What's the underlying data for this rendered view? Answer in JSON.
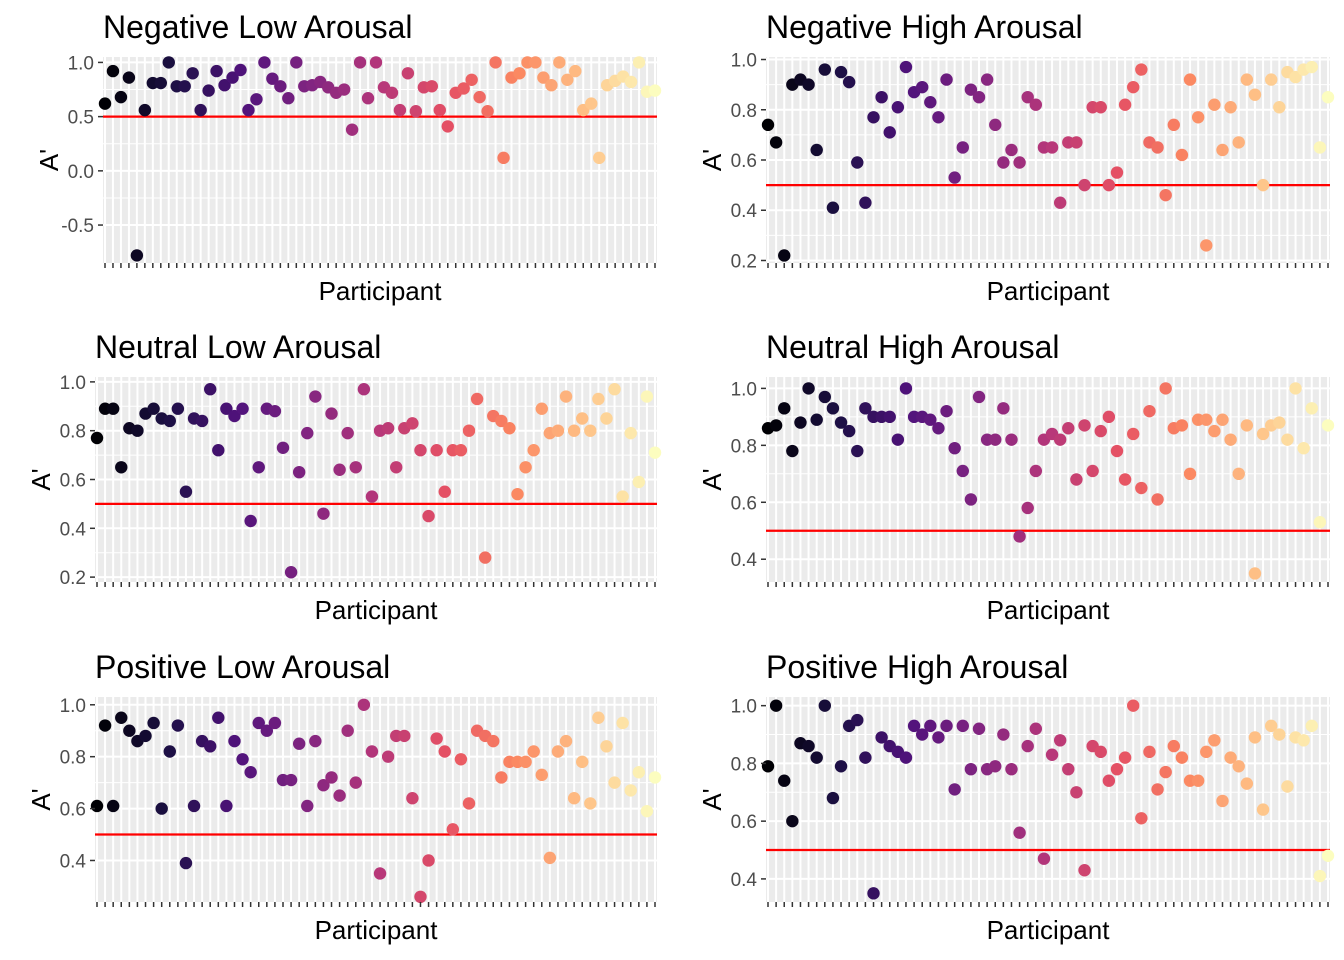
{
  "chart_data": [
    {
      "type": "scatter",
      "title": "Negative Low Arousal",
      "xlabel": "Participant",
      "ylabel": "A'",
      "ylim": [
        -0.85,
        1.05
      ],
      "yticks": [
        -0.5,
        0.0,
        0.5,
        1.0
      ],
      "ytick_labels": [
        "-0.5",
        "0.0",
        "0.5",
        "1.0"
      ],
      "reference_line": 0.5,
      "x": [
        1,
        2,
        3,
        4,
        5,
        6,
        7,
        8,
        9,
        10,
        11,
        12,
        13,
        14,
        15,
        16,
        17,
        18,
        19,
        20,
        21,
        22,
        23,
        24,
        25,
        26,
        27,
        28,
        29,
        30,
        31,
        32,
        33,
        34,
        35,
        36,
        37,
        38,
        39,
        40,
        41,
        42,
        43,
        44,
        45,
        46,
        47,
        48,
        49,
        50,
        51,
        52,
        53,
        54,
        55,
        56,
        57,
        58,
        59,
        60,
        61,
        62,
        63,
        64,
        65,
        66,
        67,
        68,
        69,
        70
      ],
      "values": [
        0.62,
        0.92,
        0.68,
        0.86,
        -0.78,
        0.56,
        0.81,
        0.81,
        1.0,
        0.78,
        0.78,
        0.9,
        0.56,
        0.74,
        0.92,
        0.79,
        0.86,
        0.93,
        0.56,
        0.66,
        1.0,
        0.85,
        0.78,
        0.67,
        1.0,
        0.78,
        0.79,
        0.82,
        0.77,
        0.72,
        0.75,
        0.38,
        1.0,
        0.67,
        1.0,
        0.77,
        0.72,
        0.56,
        0.9,
        0.55,
        0.77,
        0.78,
        0.56,
        0.41,
        0.72,
        0.76,
        0.84,
        0.68,
        0.55,
        1.0,
        0.12,
        0.86,
        0.9,
        1.0,
        1.0,
        0.86,
        0.79,
        1.0,
        0.84,
        0.92,
        0.56,
        0.62,
        0.12,
        0.79,
        0.83,
        0.87,
        0.82,
        1.0,
        0.73,
        0.74
      ]
    },
    {
      "type": "scatter",
      "title": "Negative High Arousal",
      "xlabel": "Participant",
      "ylabel": "A'",
      "ylim": [
        0.19,
        1.01
      ],
      "yticks": [
        0.2,
        0.4,
        0.6,
        0.8,
        1.0
      ],
      "ytick_labels": [
        "0.2",
        "0.4",
        "0.6",
        "0.8",
        "1.0"
      ],
      "reference_line": 0.5,
      "x": [
        1,
        2,
        3,
        4,
        5,
        6,
        7,
        8,
        9,
        10,
        11,
        12,
        13,
        14,
        15,
        16,
        17,
        18,
        19,
        20,
        21,
        22,
        23,
        24,
        25,
        26,
        27,
        28,
        29,
        30,
        31,
        32,
        33,
        34,
        35,
        36,
        37,
        38,
        39,
        40,
        41,
        42,
        43,
        44,
        45,
        46,
        47,
        48,
        49,
        50,
        51,
        52,
        53,
        54,
        55,
        56,
        57,
        58,
        59,
        60,
        61,
        62,
        63,
        64,
        65,
        66,
        67,
        68,
        69,
        70
      ],
      "values": [
        0.74,
        0.67,
        0.22,
        0.9,
        0.92,
        0.9,
        0.64,
        0.96,
        0.41,
        0.95,
        0.91,
        0.59,
        0.43,
        0.77,
        0.85,
        0.71,
        0.81,
        0.97,
        0.87,
        0.89,
        0.83,
        0.77,
        0.92,
        0.53,
        0.65,
        0.88,
        0.85,
        0.92,
        0.74,
        0.59,
        0.64,
        0.59,
        0.85,
        0.82,
        0.65,
        0.65,
        0.43,
        0.67,
        0.67,
        0.5,
        0.81,
        0.81,
        0.5,
        0.55,
        0.82,
        0.89,
        0.96,
        0.67,
        0.65,
        0.46,
        0.74,
        0.62,
        0.92,
        0.77,
        0.26,
        0.82,
        0.64,
        0.81,
        0.67,
        0.92,
        0.86,
        0.5,
        0.92,
        0.81,
        0.95,
        0.93,
        0.96,
        0.97,
        0.65,
        0.85
      ]
    },
    {
      "type": "scatter",
      "title": "Neutral Low Arousal",
      "xlabel": "Participant",
      "ylabel": "A'",
      "ylim": [
        0.18,
        1.02
      ],
      "yticks": [
        0.2,
        0.4,
        0.6,
        0.8,
        1.0
      ],
      "ytick_labels": [
        "0.2",
        "0.4",
        "0.6",
        "0.8",
        "1.0"
      ],
      "reference_line": 0.5,
      "x": [
        1,
        2,
        3,
        4,
        5,
        6,
        7,
        8,
        9,
        10,
        11,
        12,
        13,
        14,
        15,
        16,
        17,
        18,
        19,
        20,
        21,
        22,
        23,
        24,
        25,
        26,
        27,
        28,
        29,
        30,
        31,
        32,
        33,
        34,
        35,
        36,
        37,
        38,
        39,
        40,
        41,
        42,
        43,
        44,
        45,
        46,
        47,
        48,
        49,
        50,
        51,
        52,
        53,
        54,
        55,
        56,
        57,
        58,
        59,
        60,
        61,
        62,
        63,
        64,
        65,
        66,
        67,
        68,
        69,
        70
      ],
      "values": [
        0.77,
        0.89,
        0.89,
        0.65,
        0.81,
        0.8,
        0.87,
        0.89,
        0.85,
        0.84,
        0.89,
        0.55,
        0.85,
        0.84,
        0.97,
        0.72,
        0.89,
        0.86,
        0.89,
        0.43,
        0.65,
        0.89,
        0.88,
        0.73,
        0.22,
        0.63,
        0.79,
        0.94,
        0.46,
        0.87,
        0.64,
        0.79,
        0.65,
        0.97,
        0.53,
        0.8,
        0.81,
        0.65,
        0.81,
        0.83,
        0.72,
        0.45,
        0.72,
        0.55,
        0.72,
        0.72,
        0.8,
        0.93,
        0.28,
        0.86,
        0.84,
        0.81,
        0.54,
        0.65,
        0.72,
        0.89,
        0.79,
        0.8,
        0.94,
        0.8,
        0.85,
        0.8,
        0.93,
        0.85,
        0.97,
        0.53,
        0.79,
        0.59,
        0.94,
        0.71
      ]
    },
    {
      "type": "scatter",
      "title": "Neutral High Arousal",
      "xlabel": "Participant",
      "ylabel": "A'",
      "ylim": [
        0.32,
        1.04
      ],
      "yticks": [
        0.4,
        0.6,
        0.8,
        1.0
      ],
      "ytick_labels": [
        "0.4",
        "0.6",
        "0.8",
        "1.0"
      ],
      "reference_line": 0.5,
      "x": [
        1,
        2,
        3,
        4,
        5,
        6,
        7,
        8,
        9,
        10,
        11,
        12,
        13,
        14,
        15,
        16,
        17,
        18,
        19,
        20,
        21,
        22,
        23,
        24,
        25,
        26,
        27,
        28,
        29,
        30,
        31,
        32,
        33,
        34,
        35,
        36,
        37,
        38,
        39,
        40,
        41,
        42,
        43,
        44,
        45,
        46,
        47,
        48,
        49,
        50,
        51,
        52,
        53,
        54,
        55,
        56,
        57,
        58,
        59,
        60,
        61,
        62,
        63,
        64,
        65,
        66,
        67,
        68,
        69,
        70
      ],
      "values": [
        0.86,
        0.87,
        0.93,
        0.78,
        0.88,
        1.0,
        0.89,
        0.97,
        0.93,
        0.88,
        0.85,
        0.78,
        0.93,
        0.9,
        0.9,
        0.9,
        0.82,
        1.0,
        0.9,
        0.9,
        0.89,
        0.86,
        0.92,
        0.79,
        0.71,
        0.61,
        0.97,
        0.82,
        0.82,
        0.93,
        0.82,
        0.48,
        0.58,
        0.71,
        0.82,
        0.84,
        0.82,
        0.86,
        0.68,
        0.87,
        0.71,
        0.85,
        0.9,
        0.78,
        0.68,
        0.84,
        0.65,
        0.92,
        0.61,
        1.0,
        0.86,
        0.87,
        0.7,
        0.89,
        0.89,
        0.85,
        0.89,
        0.82,
        0.7,
        0.87,
        0.35,
        0.84,
        0.87,
        0.88,
        0.82,
        1.0,
        0.79,
        0.93,
        0.53,
        0.87
      ]
    },
    {
      "type": "scatter",
      "title": "Positive Low Arousal",
      "xlabel": "Participant",
      "ylabel": "A'",
      "ylim": [
        0.24,
        1.03
      ],
      "yticks": [
        0.4,
        0.6,
        0.8,
        1.0
      ],
      "ytick_labels": [
        "0.4",
        "0.6",
        "0.8",
        "1.0"
      ],
      "reference_line": 0.5,
      "x": [
        1,
        2,
        3,
        4,
        5,
        6,
        7,
        8,
        9,
        10,
        11,
        12,
        13,
        14,
        15,
        16,
        17,
        18,
        19,
        20,
        21,
        22,
        23,
        24,
        25,
        26,
        27,
        28,
        29,
        30,
        31,
        32,
        33,
        34,
        35,
        36,
        37,
        38,
        39,
        40,
        41,
        42,
        43,
        44,
        45,
        46,
        47,
        48,
        49,
        50,
        51,
        52,
        53,
        54,
        55,
        56,
        57,
        58,
        59,
        60,
        61,
        62,
        63,
        64,
        65,
        66,
        67,
        68,
        69,
        70
      ],
      "values": [
        0.61,
        0.92,
        0.61,
        0.95,
        0.9,
        0.86,
        0.88,
        0.93,
        0.6,
        0.82,
        0.92,
        0.39,
        0.61,
        0.86,
        0.84,
        0.95,
        0.61,
        0.86,
        0.79,
        0.74,
        0.93,
        0.9,
        0.93,
        0.71,
        0.71,
        0.85,
        0.61,
        0.86,
        0.69,
        0.72,
        0.65,
        0.9,
        0.7,
        1.0,
        0.82,
        0.35,
        0.8,
        0.88,
        0.88,
        0.64,
        0.26,
        0.4,
        0.87,
        0.82,
        0.52,
        0.79,
        0.62,
        0.9,
        0.88,
        0.86,
        0.72,
        0.78,
        0.78,
        0.78,
        0.82,
        0.73,
        0.41,
        0.82,
        0.86,
        0.64,
        0.78,
        0.62,
        0.95,
        0.84,
        0.7,
        0.93,
        0.67,
        0.74,
        0.59,
        0.72
      ]
    },
    {
      "type": "scatter",
      "title": "Positive High Arousal",
      "xlabel": "Participant",
      "ylabel": "A'",
      "ylim": [
        0.32,
        1.03
      ],
      "yticks": [
        0.4,
        0.6,
        0.8,
        1.0
      ],
      "ytick_labels": [
        "0.4",
        "0.6",
        "0.8",
        "1.0"
      ],
      "reference_line": 0.5,
      "x": [
        1,
        2,
        3,
        4,
        5,
        6,
        7,
        8,
        9,
        10,
        11,
        12,
        13,
        14,
        15,
        16,
        17,
        18,
        19,
        20,
        21,
        22,
        23,
        24,
        25,
        26,
        27,
        28,
        29,
        30,
        31,
        32,
        33,
        34,
        35,
        36,
        37,
        38,
        39,
        40,
        41,
        42,
        43,
        44,
        45,
        46,
        47,
        48,
        49,
        50,
        51,
        52,
        53,
        54,
        55,
        56,
        57,
        58,
        59,
        60,
        61,
        62,
        63,
        64,
        65,
        66,
        67,
        68,
        69,
        70
      ],
      "values": [
        0.79,
        1.0,
        0.74,
        0.6,
        0.87,
        0.86,
        0.82,
        1.0,
        0.68,
        0.79,
        0.93,
        0.95,
        0.82,
        0.35,
        0.89,
        0.86,
        0.84,
        0.82,
        0.93,
        0.9,
        0.93,
        0.89,
        0.93,
        0.71,
        0.93,
        0.78,
        0.92,
        0.78,
        0.79,
        0.9,
        0.78,
        0.56,
        0.86,
        0.92,
        0.47,
        0.83,
        0.88,
        0.78,
        0.7,
        0.43,
        0.86,
        0.84,
        0.74,
        0.78,
        0.82,
        1.0,
        0.61,
        0.84,
        0.71,
        0.77,
        0.86,
        0.82,
        0.74,
        0.74,
        0.84,
        0.88,
        0.67,
        0.82,
        0.79,
        0.73,
        0.89,
        0.64,
        0.93,
        0.9,
        0.72,
        0.89,
        0.88,
        0.93,
        0.41,
        0.48
      ]
    }
  ],
  "colors": {
    "reference_line": "#ff0000",
    "panel_background": "#ebebeb",
    "grid": "#ffffff",
    "tick_text": "#4d4d4d",
    "palette": [
      "#000004",
      "#1c1044",
      "#4f127b",
      "#812581",
      "#b5367a",
      "#e55064",
      "#fb8761",
      "#fec287",
      "#fcfdbf"
    ]
  }
}
